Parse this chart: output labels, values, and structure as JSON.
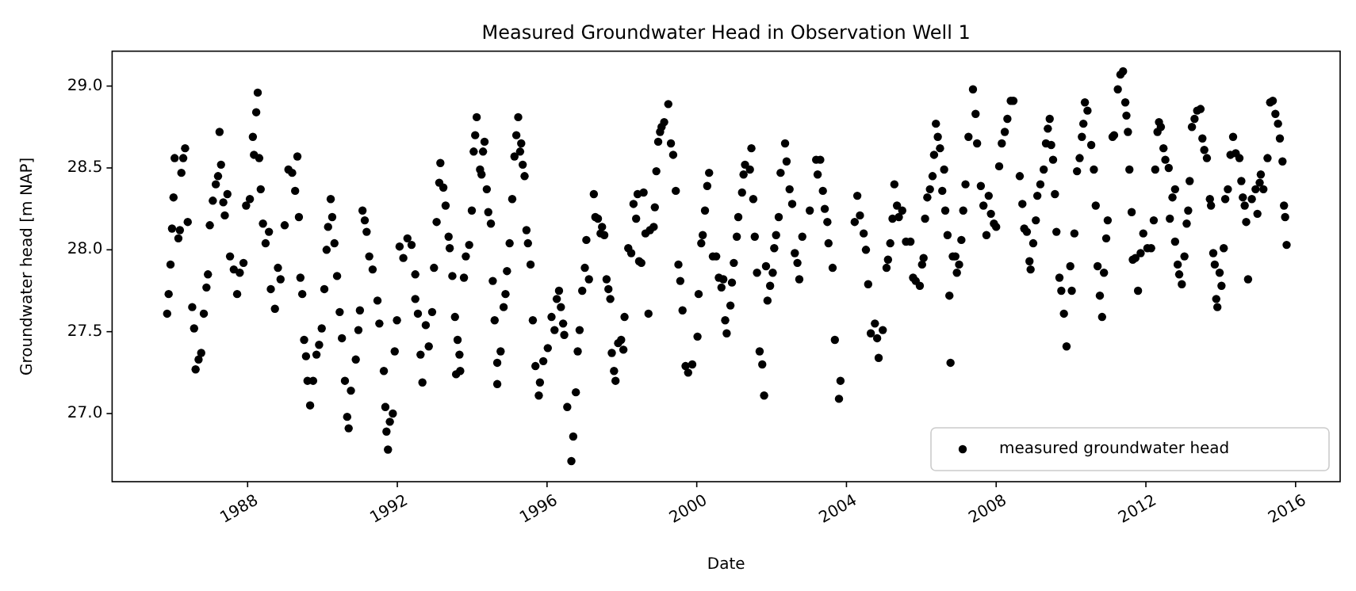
{
  "chart_data": {
    "type": "scatter",
    "title": "Measured Groundwater Head in Observation Well 1",
    "xlabel": "Date",
    "ylabel": "Groundwater head [m NAP]",
    "xlim": [
      1984.38,
      2017.19
    ],
    "xticks": [
      1988,
      1992,
      1996,
      2000,
      2004,
      2008,
      2012,
      2016
    ],
    "ylim": [
      26.584,
      29.213
    ],
    "yticks": [
      {
        "value": 27,
        "label": "27.0"
      },
      {
        "value": 27.5,
        "label": "27.5"
      },
      {
        "value": 28,
        "label": "28.0"
      },
      {
        "value": 28.5,
        "label": "28.5"
      },
      {
        "value": 29,
        "label": "29.0"
      }
    ],
    "grid": false,
    "legend": "bottom right",
    "marker": "circle",
    "series": [
      {
        "name": "measured groundwater head",
        "color": "#000000",
        "x": [
          1985.85,
          1985.89,
          1985.94,
          1985.98,
          1986.02,
          1986.05,
          1986.15,
          1986.19,
          1986.23,
          1986.28,
          1986.33,
          1986.4,
          1986.52,
          1986.57,
          1986.61,
          1986.69,
          1986.76,
          1986.83,
          1986.9,
          1986.94,
          1986.99,
          1987.07,
          1987.15,
          1987.21,
          1987.25,
          1987.29,
          1987.35,
          1987.39,
          1987.46,
          1987.53,
          1987.63,
          1987.72,
          1987.79,
          1987.89,
          1987.96,
          1988.06,
          1988.14,
          1988.17,
          1988.23,
          1988.27,
          1988.31,
          1988.35,
          1988.41,
          1988.48,
          1988.57,
          1988.62,
          1988.73,
          1988.81,
          1988.88,
          1988.99,
          1989.09,
          1989.19,
          1989.27,
          1989.33,
          1989.37,
          1989.41,
          1989.46,
          1989.51,
          1989.56,
          1989.6,
          1989.67,
          1989.75,
          1989.84,
          1989.91,
          1989.98,
          1990.05,
          1990.11,
          1990.15,
          1990.22,
          1990.26,
          1990.32,
          1990.39,
          1990.46,
          1990.52,
          1990.6,
          1990.66,
          1990.7,
          1990.76,
          1990.89,
          1990.96,
          1991.0,
          1991.07,
          1991.13,
          1991.18,
          1991.25,
          1991.34,
          1991.47,
          1991.52,
          1991.64,
          1991.68,
          1991.71,
          1991.75,
          1991.8,
          1991.88,
          1991.93,
          1991.99,
          1992.06,
          1992.16,
          1992.27,
          1992.38,
          1992.48,
          1992.48,
          1992.55,
          1992.62,
          1992.67,
          1992.76,
          1992.84,
          1992.93,
          1992.98,
          1993.05,
          1993.12,
          1993.15,
          1993.23,
          1993.29,
          1993.37,
          1993.4,
          1993.47,
          1993.54,
          1993.57,
          1993.61,
          1993.66,
          1993.68,
          1993.78,
          1993.83,
          1993.92,
          1993.99,
          1994.04,
          1994.08,
          1994.12,
          1994.21,
          1994.25,
          1994.29,
          1994.33,
          1994.39,
          1994.43,
          1994.5,
          1994.55,
          1994.6,
          1994.67,
          1994.67,
          1994.76,
          1994.84,
          1994.89,
          1994.93,
          1995.0,
          1995.07,
          1995.13,
          1995.18,
          1995.23,
          1995.28,
          1995.31,
          1995.35,
          1995.4,
          1995.45,
          1995.49,
          1995.56,
          1995.62,
          1995.69,
          1995.78,
          1995.81,
          1995.9,
          1996.02,
          1996.12,
          1996.2,
          1996.26,
          1996.32,
          1996.37,
          1996.43,
          1996.46,
          1996.54,
          1996.65,
          1996.7,
          1996.77,
          1996.82,
          1996.87,
          1996.94,
          1997.01,
          1997.05,
          1997.12,
          1997.25,
          1997.29,
          1997.36,
          1997.43,
          1997.47,
          1997.53,
          1997.59,
          1997.64,
          1997.69,
          1997.73,
          1997.79,
          1997.83,
          1997.9,
          1997.98,
          1998.04,
          1998.07,
          1998.17,
          1998.25,
          1998.31,
          1998.38,
          1998.42,
          1998.46,
          1998.52,
          1998.58,
          1998.63,
          1998.71,
          1998.75,
          1998.85,
          1998.88,
          1998.92,
          1998.97,
          1999.02,
          1999.06,
          1999.13,
          1999.24,
          1999.31,
          1999.37,
          1999.44,
          1999.51,
          1999.56,
          1999.62,
          1999.7,
          1999.77,
          1999.88,
          2000.02,
          2000.05,
          2000.12,
          2000.16,
          2000.22,
          2000.28,
          2000.33,
          2000.43,
          2000.52,
          2000.59,
          2000.66,
          2000.71,
          2000.76,
          2000.8,
          2000.9,
          2000.94,
          2000.99,
          2001.07,
          2001.11,
          2001.21,
          2001.25,
          2001.29,
          2001.42,
          2001.46,
          2001.51,
          2001.55,
          2001.61,
          2001.68,
          2001.75,
          2001.8,
          2001.85,
          2001.89,
          2001.96,
          2002.03,
          2002.07,
          2002.12,
          2002.19,
          2002.24,
          2002.36,
          2002.4,
          2002.48,
          2002.55,
          2002.62,
          2002.69,
          2002.74,
          2002.82,
          2003.02,
          2003.19,
          2003.23,
          2003.3,
          2003.37,
          2003.42,
          2003.49,
          2003.52,
          2003.63,
          2003.69,
          2003.8,
          2003.84,
          2004.22,
          2004.29,
          2004.36,
          2004.46,
          2004.52,
          2004.58,
          2004.65,
          2004.76,
          2004.82,
          2004.86,
          2004.97,
          2005.07,
          2005.11,
          2005.17,
          2005.23,
          2005.28,
          2005.35,
          2005.4,
          2005.49,
          2005.59,
          2005.71,
          2005.78,
          2005.85,
          2005.96,
          2006.02,
          2006.06,
          2006.1,
          2006.16,
          2006.23,
          2006.3,
          2006.34,
          2006.39,
          2006.44,
          2006.5,
          2006.56,
          2006.61,
          2006.64,
          2006.7,
          2006.75,
          2006.78,
          2006.84,
          2006.91,
          2006.95,
          2007.01,
          2007.07,
          2007.12,
          2007.18,
          2007.26,
          2007.38,
          2007.45,
          2007.49,
          2007.59,
          2007.66,
          2007.74,
          2007.8,
          2007.86,
          2007.94,
          2008.0,
          2008.08,
          2008.15,
          2008.23,
          2008.3,
          2008.39,
          2008.46,
          2008.63,
          2008.7,
          2008.75,
          2008.82,
          2008.89,
          2008.92,
          2008.99,
          2009.06,
          2009.1,
          2009.18,
          2009.27,
          2009.33,
          2009.38,
          2009.43,
          2009.47,
          2009.52,
          2009.57,
          2009.61,
          2009.69,
          2009.74,
          2009.81,
          2009.88,
          2009.98,
          2010.02,
          2010.09,
          2010.16,
          2010.23,
          2010.29,
          2010.33,
          2010.37,
          2010.44,
          2010.54,
          2010.61,
          2010.66,
          2010.71,
          2010.77,
          2010.83,
          2010.88,
          2010.94,
          2010.98,
          2011.11,
          2011.15,
          2011.25,
          2011.32,
          2011.39,
          2011.45,
          2011.48,
          2011.52,
          2011.56,
          2011.62,
          2011.65,
          2011.72,
          2011.79,
          2011.86,
          2011.93,
          2012.04,
          2012.14,
          2012.21,
          2012.25,
          2012.31,
          2012.35,
          2012.4,
          2012.47,
          2012.52,
          2012.61,
          2012.64,
          2012.71,
          2012.78,
          2012.78,
          2012.85,
          2012.89,
          2012.96,
          2013.03,
          2013.09,
          2013.13,
          2013.17,
          2013.23,
          2013.3,
          2013.37,
          2013.46,
          2013.51,
          2013.56,
          2013.63,
          2013.71,
          2013.74,
          2013.8,
          2013.84,
          2013.88,
          2013.91,
          2013.97,
          2014.02,
          2014.08,
          2014.12,
          2014.19,
          2014.26,
          2014.33,
          2014.4,
          2014.5,
          2014.55,
          2014.59,
          2014.64,
          2014.68,
          2014.73,
          2014.83,
          2014.93,
          2014.98,
          2015.04,
          2015.07,
          2015.14,
          2015.25,
          2015.32,
          2015.39,
          2015.46,
          2015.53,
          2015.58,
          2015.65,
          2015.69,
          2015.72,
          2015.76
        ],
        "values": [
          27.61,
          27.73,
          27.91,
          28.13,
          28.32,
          28.56,
          28.07,
          28.12,
          28.47,
          28.56,
          28.62,
          28.17,
          27.65,
          27.52,
          27.27,
          27.33,
          27.37,
          27.61,
          27.77,
          27.85,
          28.15,
          28.3,
          28.4,
          28.45,
          28.72,
          28.52,
          28.29,
          28.21,
          28.34,
          27.96,
          27.88,
          27.73,
          27.86,
          27.92,
          28.27,
          28.31,
          28.69,
          28.58,
          28.84,
          28.96,
          28.56,
          28.37,
          28.16,
          28.04,
          28.11,
          27.76,
          27.64,
          27.89,
          27.82,
          28.15,
          28.49,
          28.47,
          28.36,
          28.57,
          28.2,
          27.83,
          27.73,
          27.45,
          27.35,
          27.2,
          27.05,
          27.2,
          27.36,
          27.42,
          27.52,
          27.76,
          28.0,
          28.14,
          28.31,
          28.2,
          28.04,
          27.84,
          27.62,
          27.46,
          27.2,
          26.98,
          26.91,
          27.14,
          27.33,
          27.51,
          27.63,
          28.24,
          28.18,
          28.11,
          27.96,
          27.88,
          27.69,
          27.55,
          27.26,
          27.04,
          26.89,
          26.78,
          26.95,
          27.0,
          27.38,
          27.57,
          28.02,
          27.95,
          28.07,
          28.03,
          27.85,
          27.7,
          27.61,
          27.36,
          27.19,
          27.54,
          27.41,
          27.62,
          27.89,
          28.17,
          28.41,
          28.53,
          28.38,
          28.27,
          28.08,
          28.01,
          27.84,
          27.59,
          27.24,
          27.45,
          27.36,
          27.26,
          27.83,
          27.96,
          28.03,
          28.24,
          28.6,
          28.7,
          28.81,
          28.49,
          28.46,
          28.6,
          28.66,
          28.37,
          28.23,
          28.16,
          27.81,
          27.57,
          27.31,
          27.18,
          27.38,
          27.65,
          27.73,
          27.87,
          28.04,
          28.31,
          28.57,
          28.7,
          28.81,
          28.6,
          28.65,
          28.52,
          28.45,
          28.12,
          28.04,
          27.91,
          27.57,
          27.29,
          27.11,
          27.19,
          27.32,
          27.4,
          27.59,
          27.51,
          27.7,
          27.75,
          27.65,
          27.55,
          27.48,
          27.04,
          26.71,
          26.86,
          27.13,
          27.38,
          27.51,
          27.75,
          27.89,
          28.06,
          27.82,
          28.34,
          28.2,
          28.19,
          28.1,
          28.14,
          28.09,
          27.82,
          27.76,
          27.7,
          27.37,
          27.26,
          27.2,
          27.43,
          27.45,
          27.39,
          27.59,
          28.01,
          27.98,
          28.28,
          28.19,
          28.34,
          27.93,
          27.92,
          28.35,
          28.1,
          27.61,
          28.12,
          28.14,
          28.26,
          28.48,
          28.66,
          28.72,
          28.75,
          28.78,
          28.89,
          28.65,
          28.58,
          28.36,
          27.91,
          27.81,
          27.63,
          27.29,
          27.25,
          27.3,
          27.47,
          27.73,
          28.04,
          28.09,
          28.24,
          28.39,
          28.47,
          27.96,
          27.96,
          27.83,
          27.77,
          27.82,
          27.57,
          27.49,
          27.66,
          27.8,
          27.92,
          28.08,
          28.2,
          28.35,
          28.46,
          28.52,
          28.49,
          28.62,
          28.31,
          28.08,
          27.86,
          27.38,
          27.3,
          27.11,
          27.9,
          27.69,
          27.78,
          27.86,
          28.01,
          28.09,
          28.2,
          28.47,
          28.65,
          28.54,
          28.37,
          28.28,
          27.98,
          27.92,
          27.82,
          28.08,
          28.24,
          28.55,
          28.46,
          28.55,
          28.36,
          28.25,
          28.17,
          28.04,
          27.89,
          27.45,
          27.09,
          27.2,
          28.17,
          28.33,
          28.21,
          28.1,
          28.0,
          27.79,
          27.49,
          27.55,
          27.46,
          27.34,
          27.51,
          27.89,
          27.94,
          28.04,
          28.19,
          28.4,
          28.27,
          28.2,
          28.24,
          28.05,
          28.05,
          27.83,
          27.81,
          27.78,
          27.91,
          27.95,
          28.19,
          28.32,
          28.37,
          28.45,
          28.58,
          28.77,
          28.69,
          28.62,
          28.36,
          28.49,
          28.24,
          28.09,
          27.72,
          27.31,
          27.96,
          27.96,
          27.86,
          27.91,
          28.06,
          28.24,
          28.4,
          28.69,
          28.98,
          28.83,
          28.65,
          28.39,
          28.27,
          28.09,
          28.33,
          28.22,
          28.16,
          28.14,
          28.51,
          28.65,
          28.72,
          28.8,
          28.91,
          28.91,
          28.45,
          28.28,
          28.13,
          28.11,
          27.93,
          27.88,
          28.04,
          28.18,
          28.33,
          28.4,
          28.49,
          28.65,
          28.74,
          28.8,
          28.64,
          28.55,
          28.34,
          28.11,
          27.83,
          27.75,
          27.61,
          27.41,
          27.9,
          27.75,
          28.1,
          28.48,
          28.56,
          28.69,
          28.77,
          28.9,
          28.85,
          28.64,
          28.49,
          28.27,
          27.9,
          27.72,
          27.59,
          27.86,
          28.07,
          28.18,
          28.69,
          28.7,
          28.98,
          29.07,
          29.09,
          28.9,
          28.82,
          28.72,
          28.49,
          28.23,
          27.94,
          27.95,
          27.75,
          27.98,
          28.1,
          28.01,
          28.01,
          28.18,
          28.49,
          28.72,
          28.78,
          28.75,
          28.62,
          28.55,
          28.5,
          28.19,
          28.32,
          28.37,
          28.05,
          27.91,
          27.85,
          27.79,
          27.96,
          28.16,
          28.24,
          28.42,
          28.75,
          28.8,
          28.85,
          28.86,
          28.68,
          28.61,
          28.56,
          28.31,
          28.27,
          27.98,
          27.91,
          27.7,
          27.65,
          27.86,
          27.78,
          28.01,
          28.31,
          28.37,
          28.58,
          28.69,
          28.59,
          28.56,
          28.42,
          28.32,
          28.27,
          28.17,
          27.82,
          28.31,
          28.37,
          28.22,
          28.41,
          28.46,
          28.37,
          28.56,
          28.9,
          28.91,
          28.83,
          28.77,
          28.68,
          28.54,
          28.27,
          28.2,
          28.03
        ]
      }
    ]
  }
}
